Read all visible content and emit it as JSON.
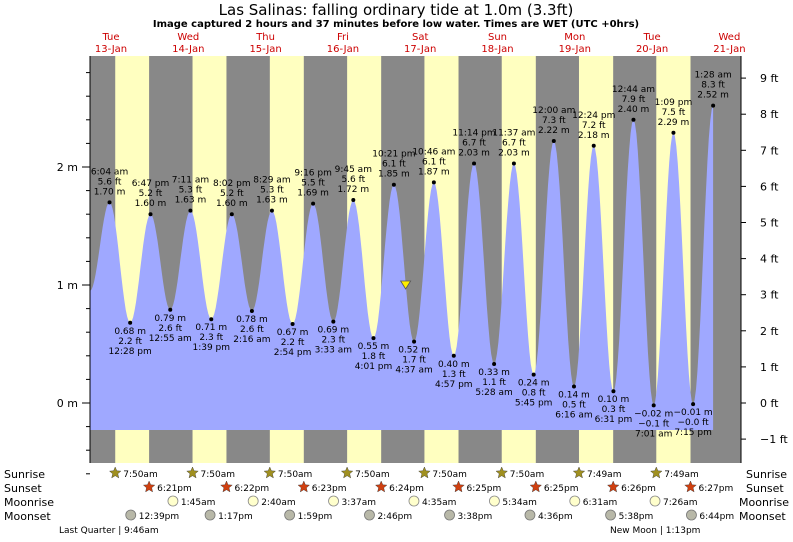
{
  "title": "Las Salinas: falling  ordinary tide at 1.0m (3.3ft)",
  "subtitle": "Image captured 2 hours and 37 minutes before low water. Times are WET (UTC +0hrs)",
  "colors": {
    "night": "#888888",
    "day": "#ffffc0",
    "tide_fill": "#9fa8ff",
    "day_name": "#cc0000",
    "sun_rise_star": "#a09020",
    "sun_set_star": "#d04010",
    "moon_rise": "#ffffcc",
    "moon_set": "#b8b8a8",
    "marker": "#ffee00"
  },
  "days": [
    {
      "name": "Tue",
      "date": "13-Jan"
    },
    {
      "name": "Wed",
      "date": "14-Jan"
    },
    {
      "name": "Thu",
      "date": "15-Jan"
    },
    {
      "name": "Fri",
      "date": "16-Jan"
    },
    {
      "name": "Sat",
      "date": "17-Jan"
    },
    {
      "name": "Sun",
      "date": "18-Jan"
    },
    {
      "name": "Mon",
      "date": "19-Jan"
    },
    {
      "name": "Tue",
      "date": "20-Jan"
    },
    {
      "name": "Wed",
      "date": "21-Jan"
    }
  ],
  "chart_data": {
    "type": "area",
    "x_start_date": "13-Jan",
    "ylim_m": [
      -0.7,
      2.95
    ],
    "y_ticks_m": [
      "2 m",
      "1 m",
      "0 m"
    ],
    "y_ticks_m_values": [
      2,
      1,
      0
    ],
    "y_ticks_ft": [
      "9 ft",
      "8 ft",
      "7 ft",
      "6 ft",
      "5 ft",
      "4 ft",
      "3 ft",
      "2 ft",
      "1 ft",
      "0 ft",
      "−1 ft"
    ],
    "y_ticks_ft_values": [
      9,
      8,
      7,
      6,
      5,
      4,
      3,
      2,
      1,
      0,
      -1
    ],
    "series_start": {
      "time": "13-Jan 00:00",
      "m": 0.95
    },
    "extremes": [
      {
        "type": "high",
        "day": 0,
        "time": "6:04 am",
        "ft": "5.6 ft",
        "m": "1.70 m"
      },
      {
        "type": "low",
        "day": 0,
        "time": "12:28 pm",
        "ft": "2.2 ft",
        "m": "0.68 m"
      },
      {
        "type": "high",
        "day": 0,
        "time": "6:47 pm",
        "ft": "5.2 ft",
        "m": "1.60 m"
      },
      {
        "type": "low",
        "day": 1,
        "time": "12:55 am",
        "ft": "2.6 ft",
        "m": "0.79 m"
      },
      {
        "type": "high",
        "day": 1,
        "time": "7:11 am",
        "ft": "5.3 ft",
        "m": "1.63 m"
      },
      {
        "type": "low",
        "day": 1,
        "time": "1:39 pm",
        "ft": "2.3 ft",
        "m": "0.71 m"
      },
      {
        "type": "high",
        "day": 1,
        "time": "8:02 pm",
        "ft": "5.2 ft",
        "m": "1.60 m"
      },
      {
        "type": "low",
        "day": 2,
        "time": "2:16 am",
        "ft": "2.6 ft",
        "m": "0.78 m"
      },
      {
        "type": "high",
        "day": 2,
        "time": "8:29 am",
        "ft": "5.3 ft",
        "m": "1.63 m"
      },
      {
        "type": "low",
        "day": 2,
        "time": "2:54 pm",
        "ft": "2.2 ft",
        "m": "0.67 m"
      },
      {
        "type": "high",
        "day": 2,
        "time": "9:16 pm",
        "ft": "5.5 ft",
        "m": "1.69 m"
      },
      {
        "type": "low",
        "day": 3,
        "time": "3:33 am",
        "ft": "2.3 ft",
        "m": "0.69 m"
      },
      {
        "type": "high",
        "day": 3,
        "time": "9:45 am",
        "ft": "5.6 ft",
        "m": "1.72 m"
      },
      {
        "type": "low",
        "day": 3,
        "time": "4:01 pm",
        "ft": "1.8 ft",
        "m": "0.55 m"
      },
      {
        "type": "high",
        "day": 3,
        "time": "10:21 pm",
        "ft": "6.1 ft",
        "m": "1.85 m"
      },
      {
        "type": "low",
        "day": 4,
        "time": "4:37 am",
        "ft": "1.7 ft",
        "m": "0.52 m"
      },
      {
        "type": "high",
        "day": 4,
        "time": "10:46 am",
        "ft": "6.1 ft",
        "m": "1.87 m"
      },
      {
        "type": "low",
        "day": 4,
        "time": "4:57 pm",
        "ft": "1.3 ft",
        "m": "0.40 m"
      },
      {
        "type": "high",
        "day": 4,
        "time": "11:14 pm",
        "ft": "6.7 ft",
        "m": "2.03 m"
      },
      {
        "type": "low",
        "day": 5,
        "time": "5:28 am",
        "ft": "1.1 ft",
        "m": "0.33 m"
      },
      {
        "type": "high",
        "day": 5,
        "time": "11:37 am",
        "ft": "6.7 ft",
        "m": "2.03 m"
      },
      {
        "type": "low",
        "day": 5,
        "time": "5:45 pm",
        "ft": "0.8 ft",
        "m": "0.24 m"
      },
      {
        "type": "high",
        "day": 6,
        "time": "12:00 am",
        "ft": "7.3 ft",
        "m": "2.22 m"
      },
      {
        "type": "low",
        "day": 6,
        "time": "6:16 am",
        "ft": "0.5 ft",
        "m": "0.14 m"
      },
      {
        "type": "high",
        "day": 6,
        "time": "12:24 pm",
        "ft": "7.2 ft",
        "m": "2.18 m"
      },
      {
        "type": "low",
        "day": 6,
        "time": "6:31 pm",
        "ft": "0.3 ft",
        "m": "0.10 m"
      },
      {
        "type": "high",
        "day": 7,
        "time": "12:44 am",
        "ft": "7.9 ft",
        "m": "2.40 m"
      },
      {
        "type": "low",
        "day": 7,
        "time": "7:01 am",
        "ft": "−0.1 ft",
        "m": "−0.02 m"
      },
      {
        "type": "high",
        "day": 7,
        "time": "1:09 pm",
        "ft": "7.5 ft",
        "m": "2.29 m"
      },
      {
        "type": "low",
        "day": 7,
        "time": "7:15 pm",
        "ft": "−0.0 ft",
        "m": "−0.01 m"
      },
      {
        "type": "high",
        "day": 8,
        "time": "1:28 am",
        "ft": "8.3 ft",
        "m": "2.52 m"
      }
    ],
    "current_marker": {
      "day": 4,
      "time": "2:00 am",
      "m": 1.0
    },
    "sunrise": [
      "7:50am",
      "7:50am",
      "7:50am",
      "7:50am",
      "7:50am",
      "7:50am",
      "7:49am",
      "7:49am"
    ],
    "sunset": [
      "6:21pm",
      "6:22pm",
      "6:23pm",
      "6:24pm",
      "6:25pm",
      "6:25pm",
      "6:26pm",
      "6:27pm"
    ],
    "moonrise": [
      {
        "day": 1,
        "time": "1:45am"
      },
      {
        "day": 2,
        "time": "2:40am"
      },
      {
        "day": 3,
        "time": "3:37am"
      },
      {
        "day": 4,
        "time": "4:35am"
      },
      {
        "day": 5,
        "time": "5:34am"
      },
      {
        "day": 6,
        "time": "6:31am"
      },
      {
        "day": 7,
        "time": "7:26am"
      }
    ],
    "moonset": [
      {
        "day": 0,
        "time": "12:39pm"
      },
      {
        "day": 1,
        "time": "1:17pm"
      },
      {
        "day": 2,
        "time": "1:59pm"
      },
      {
        "day": 3,
        "time": "2:46pm"
      },
      {
        "day": 4,
        "time": "3:38pm"
      },
      {
        "day": 5,
        "time": "4:36pm"
      },
      {
        "day": 6,
        "time": "5:38pm"
      },
      {
        "day": 7,
        "time": "6:44pm"
      }
    ],
    "row_labels": {
      "sunrise": "Sunrise",
      "sunset": "Sunset",
      "moonrise": "Moonrise",
      "moonset": "Moonset"
    },
    "moon_phases": [
      "Last Quarter | 9:46am",
      "New Moon | 1:13pm"
    ]
  }
}
